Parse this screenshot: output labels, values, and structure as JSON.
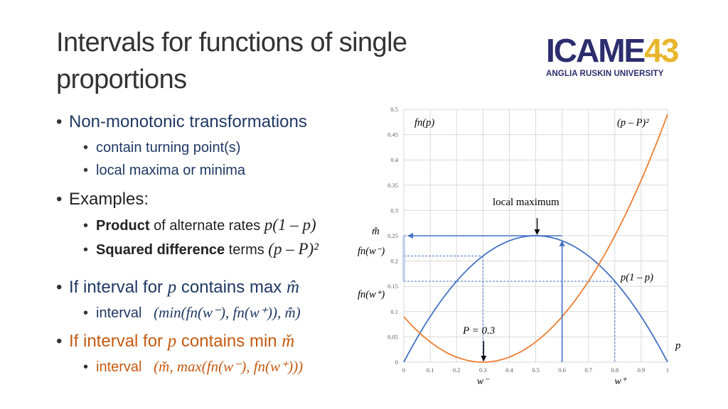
{
  "slide": {
    "title_line1": "Intervals for functions of single",
    "title_line2": "proportions"
  },
  "logo": {
    "mark_icame": "ICAME",
    "mark_number": "43",
    "subtitle": "ANGLIA RUSKIN UNIVERSITY"
  },
  "bullets": {
    "nonmono": "Non-monotonic transformations",
    "turning": "contain turning point(s)",
    "localmax": "local maxima or minima",
    "examples": "Examples:",
    "product_bold": "Product",
    "product_rest": "of alternate rates",
    "product_formula": "p(1 – p)",
    "sqdiff_bold": "Squared difference",
    "sqdiff_rest": "terms",
    "sqdiff_formula": "(p – P)²",
    "ifmax_pre": "If interval for",
    "ifmax_p": "p",
    "ifmax_post": "contains max",
    "ifmax_sym": "m̂",
    "interval_label": "interval",
    "interval_max_formula": "(min(fn(w⁻), fn(w⁺)), m̂)",
    "ifmin_pre": "If interval for",
    "ifmin_p": "p",
    "ifmin_post": "contains min",
    "ifmin_sym": "m̌",
    "interval_min_formula": "(m̌, max(fn(w⁻), fn(w⁺)))"
  },
  "chart_data": {
    "type": "line",
    "x_ticks": [
      0,
      0.1,
      0.2,
      0.3,
      0.4,
      0.5,
      0.6,
      0.7,
      0.8,
      0.9,
      1
    ],
    "y_ticks": [
      0,
      0.05,
      0.1,
      0.15,
      0.2,
      0.25,
      0.3,
      0.35,
      0.4,
      0.45,
      0.5
    ],
    "xlim": [
      0,
      1
    ],
    "ylim": [
      0,
      0.5
    ],
    "grid": true,
    "colors": {
      "product": "#4472c4",
      "squared": "#ed7d31",
      "grid": "#d9d9d9",
      "arrow": "#4472c4"
    },
    "series": [
      {
        "name": "p(1 – p)",
        "formula": "p*(1-p)",
        "x": [
          0,
          0.1,
          0.2,
          0.3,
          0.4,
          0.5,
          0.6,
          0.7,
          0.8,
          0.9,
          1
        ],
        "values": [
          0,
          0.09,
          0.16,
          0.21,
          0.24,
          0.25,
          0.24,
          0.21,
          0.16,
          0.09,
          0
        ]
      },
      {
        "name": "(p – P)²",
        "formula": "(p-0.3)^2",
        "x": [
          0,
          0.1,
          0.2,
          0.3,
          0.4,
          0.5,
          0.6,
          0.7,
          0.8,
          0.9,
          1
        ],
        "values": [
          0.09,
          0.04,
          0.01,
          0,
          0.01,
          0.04,
          0.09,
          0.16,
          0.25,
          0.36,
          0.49
        ]
      }
    ],
    "P": 0.3,
    "w_minus": 0.3,
    "w_plus": 0.8,
    "upper_arrow_x": 0.6,
    "labels": {
      "fn_p": "fn(p)",
      "sq_label": "(p – P)²",
      "local_max": "local maximum",
      "m_hat": "m̂",
      "fn_wminus": "fn(w⁻)",
      "fn_wplus": "fn(w⁺)",
      "prod_label": "p(1 – p)",
      "P_eq": "P = 0.3",
      "p_axis": "p",
      "w_minus": "w⁻",
      "w_plus": "w⁺"
    }
  }
}
